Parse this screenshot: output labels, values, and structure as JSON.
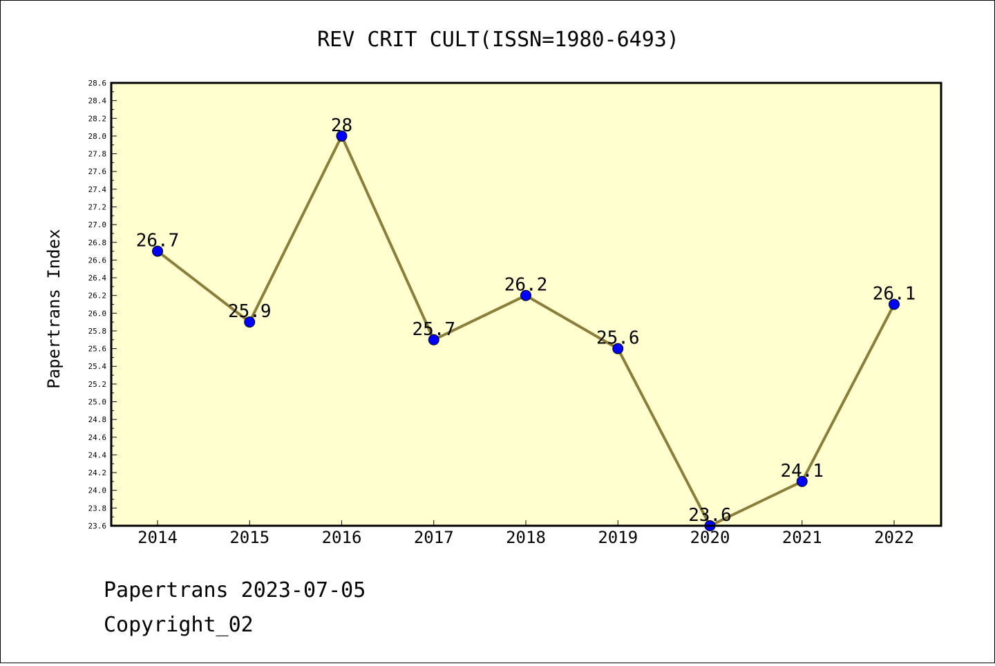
{
  "chart_data": {
    "type": "line",
    "title": "REV CRIT CULT(ISSN=1980-6493)",
    "ylabel": "Papertrans Index",
    "xlabel": "",
    "categories": [
      "2014",
      "2015",
      "2016",
      "2017",
      "2018",
      "2019",
      "2020",
      "2021",
      "2022"
    ],
    "values": [
      26.7,
      25.9,
      28.0,
      25.7,
      26.2,
      25.6,
      23.6,
      24.1,
      26.1
    ],
    "data_labels": [
      "26.7",
      "25.9",
      "28",
      "25.7",
      "26.2",
      "25.6",
      "23.6",
      "24.1",
      "26.1"
    ],
    "ylim": [
      23.6,
      28.6
    ],
    "ytick_step": 0.2,
    "grid": false,
    "colors": {
      "plot_background": "#ffffd0",
      "line": "#8b7d3a",
      "marker": "#0000ff"
    }
  },
  "footer": {
    "line1": "Papertrans 2023-07-05",
    "line2": "Copyright_02"
  }
}
